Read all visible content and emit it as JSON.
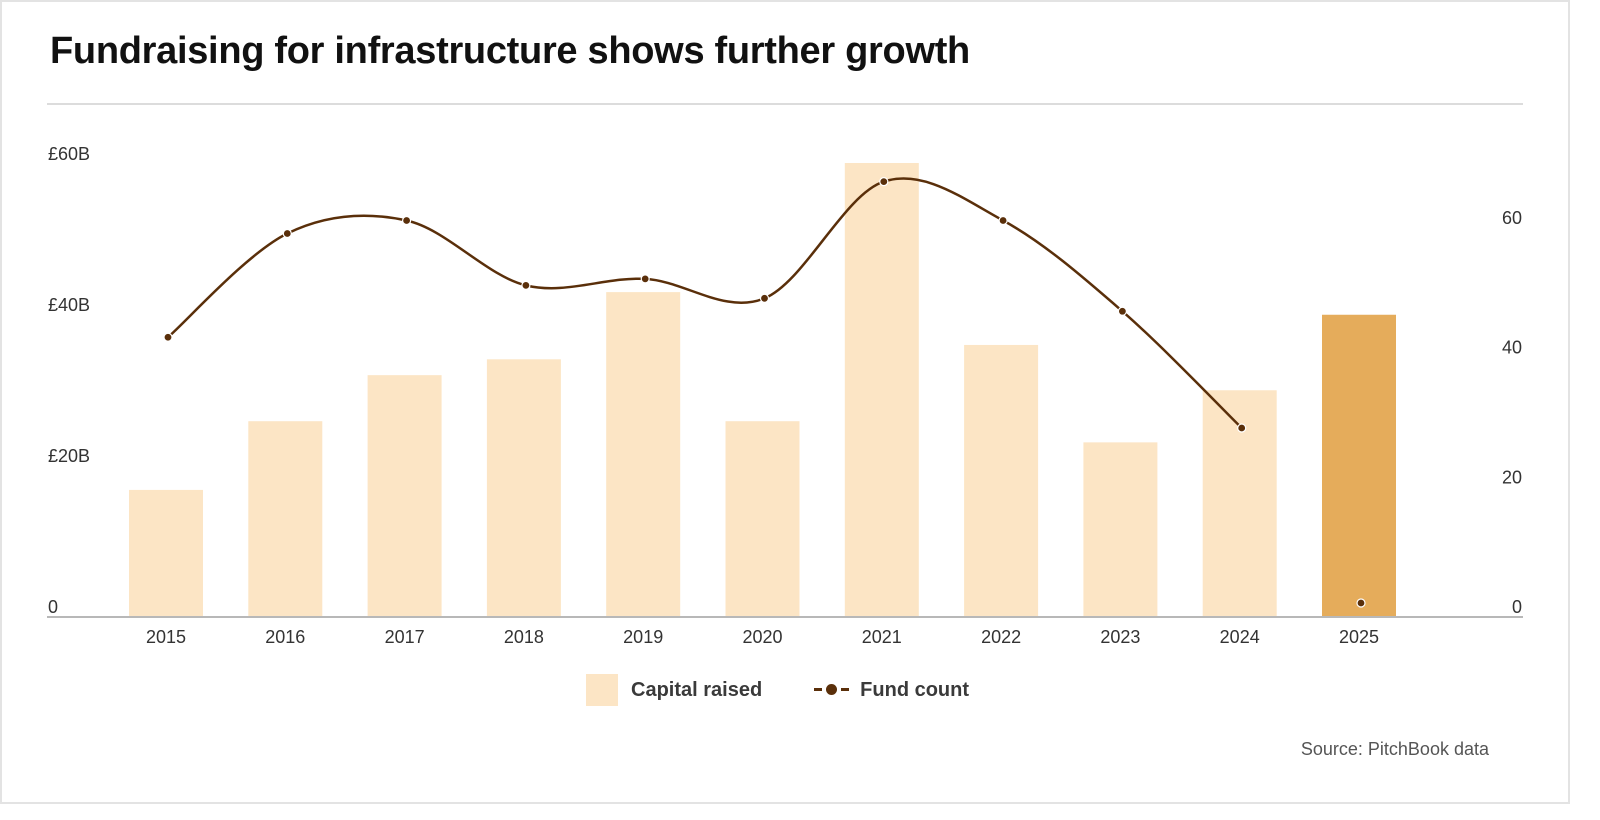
{
  "header": {
    "title": "Fundraising for infrastructure shows further growth"
  },
  "footer": {
    "source": "Source: PitchBook data"
  },
  "colors": {
    "bar": "#fce5c5",
    "bar_highlight": "#e5ac5b",
    "line": "#5a2f0a",
    "axis": "#b8b8b8",
    "text": "#333333"
  },
  "legend": {
    "items": [
      {
        "label": "Capital raised",
        "type": "bar"
      },
      {
        "label": "Fund count",
        "type": "line"
      }
    ]
  },
  "chart_data": {
    "type": "bar",
    "title": "Fundraising for infrastructure shows further growth",
    "categories": [
      "2015",
      "2016",
      "2017",
      "2018",
      "2019",
      "2020",
      "2021",
      "2022",
      "2023",
      "2024",
      "2025"
    ],
    "series": [
      {
        "name": "Capital raised",
        "type": "bar",
        "axis": "left",
        "unit": "£B",
        "values": [
          16.7,
          25.8,
          31.9,
          34.0,
          42.9,
          25.8,
          60.0,
          35.9,
          23.0,
          29.9,
          39.9
        ],
        "highlight_index": 10
      },
      {
        "name": "Fund count",
        "type": "line",
        "axis": "right",
        "values": [
          43,
          59,
          61,
          51,
          52,
          49,
          67,
          61,
          47,
          29,
          2
        ],
        "smooth": true
      }
    ],
    "left_axis": {
      "ticks": [
        0,
        20,
        40,
        60
      ],
      "tick_labels": [
        "0",
        "£20B",
        "£40B",
        "£60B"
      ],
      "range": [
        0,
        60
      ]
    },
    "right_axis": {
      "ticks": [
        0,
        20,
        40,
        60
      ],
      "tick_labels": [
        "0",
        "20",
        "40",
        "60"
      ],
      "range": [
        0,
        60
      ]
    },
    "grid": false,
    "legend_position": "bottom-center",
    "xlabel": "",
    "ylabel": ""
  }
}
